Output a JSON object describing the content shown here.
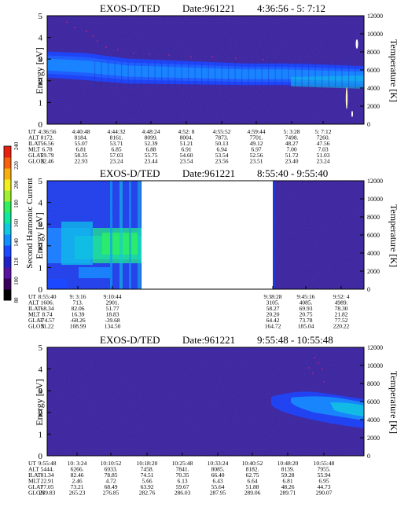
{
  "colorbar": {
    "label": "Second Harmonic Current",
    "ticks": [
      "80",
      "100",
      "120",
      "140",
      "160",
      "180",
      "200",
      "220",
      "240"
    ],
    "colors": [
      "#000000",
      "#3a0060",
      "#5a10a0",
      "#2020c8",
      "#1c48ff",
      "#1090ff",
      "#10c8e0",
      "#10e8a0",
      "#30f060",
      "#a0f030",
      "#f0f020",
      "#f8b010",
      "#f86010",
      "#e82010"
    ]
  },
  "chart_data": [
    {
      "type": "heatmap",
      "title": "EXOS-D/TED",
      "date_label": "Date:961221",
      "time_range": "4:36:56 - 5: 7:12",
      "ylabel": "Energy [eV]",
      "ylabel_right": "Temperature [K]",
      "yticks": [
        "0",
        "1",
        "2",
        "3",
        "4",
        "5"
      ],
      "yticks_right": [
        "0",
        "2000",
        "4000",
        "6000",
        "8000",
        "10000",
        "12000"
      ],
      "ylim": [
        0,
        5
      ],
      "ylim_right": [
        0,
        12000
      ],
      "row_labels": [
        "UT",
        "ALT",
        "ILAT",
        "MLT",
        "GLAT",
        "GLON"
      ],
      "columns": [
        [
          "4:36:56",
          "8172.",
          "56.56",
          "6.78",
          "59.79",
          "22.46"
        ],
        [
          "4:40:48",
          "8184.",
          "55.07",
          "6.81",
          "58.35",
          "22.93"
        ],
        [
          "4:44:32",
          "8161.",
          "53.71",
          "6.85",
          "57.03",
          "23.24"
        ],
        [
          "4:48:24",
          "8099.",
          "52.39",
          "6.88",
          "55.75",
          "23.44"
        ],
        [
          "4:52: 8",
          "8004.",
          "51.21",
          "6.91",
          "54.60",
          "23.54"
        ],
        [
          "4:55:52",
          "7873.",
          "50.13",
          "6.94",
          "53.54",
          "23.56"
        ],
        [
          "4:59:44",
          "7701.",
          "49.12",
          "6.97",
          "52.56",
          "23.51"
        ],
        [
          "5: 3:28",
          "7498.",
          "48.27",
          "7.00",
          "51.72",
          "23.40"
        ],
        [
          "5: 7:12",
          "7260.",
          "47.56",
          "7.03",
          "51.03",
          "23.24"
        ]
      ],
      "band": {
        "center": [
          2.75,
          2.65,
          2.45,
          2.4,
          2.35,
          2.3,
          2.3,
          2.25,
          2.2
        ],
        "width": [
          1.2,
          1.25,
          1.15,
          1.1,
          1.05,
          1.0,
          1.0,
          1.0,
          0.95
        ]
      }
    },
    {
      "type": "heatmap",
      "title": "EXOS-D/TED",
      "date_label": "Date:961221",
      "time_range": "8:55:40 - 9:55:40",
      "ylabel": "Energy [eV]",
      "ylabel_right": "Temperature [K]",
      "yticks": [
        "0",
        "1",
        "2",
        "3",
        "4",
        "5"
      ],
      "yticks_right": [
        "0",
        "2000",
        "4000",
        "6000",
        "8000",
        "10000",
        "12000"
      ],
      "ylim": [
        0,
        5
      ],
      "ylim_right": [
        0,
        12000
      ],
      "row_labels": [
        "UT",
        "ALT",
        "ILAT",
        "MLT",
        "GLAT",
        "GLON"
      ],
      "columns": [
        [
          "8:55:40",
          "1606.",
          "68.34",
          "8.74",
          "-74.57",
          "31.22"
        ],
        [
          "9: 3:16",
          "713.",
          "82.06",
          "16.39",
          "-68.26",
          "108.99"
        ],
        [
          "9:10:44",
          "2901.",
          "51.77",
          "18.83",
          "-39.68",
          "134.50"
        ],
        [
          "9:38:28",
          "3105.",
          "58.27",
          "20.20",
          "64.42",
          "164.72"
        ],
        [
          "9:45:16",
          "4085.",
          "69.93",
          "20.75",
          "73.78",
          "185.04"
        ],
        [
          "9:52: 4",
          "4989.",
          "78.30",
          "21.82",
          "77.52",
          "220.22"
        ]
      ]
    },
    {
      "type": "heatmap",
      "title": "EXOS-D/TED",
      "date_label": "Date:961221",
      "time_range": "9:55:48 - 10:55:48",
      "ylabel": "Energy [eV]",
      "ylabel_right": "Temperature [K]",
      "yticks": [
        "0",
        "1",
        "2",
        "3",
        "4",
        "5"
      ],
      "yticks_right": [
        "0",
        "2000",
        "4000",
        "6000",
        "8000",
        "10000",
        "12000"
      ],
      "ylim": [
        0,
        5
      ],
      "ylim_right": [
        0,
        12000
      ],
      "row_labels": [
        "UT",
        "ALT",
        "ILAT",
        "MLT",
        "GLAT",
        "GLON"
      ],
      "columns": [
        [
          "9:55:48",
          "5444.",
          "81.34",
          "22.91",
          "77.05",
          "239.83"
        ],
        [
          "10: 3:24",
          "6266.",
          "82.46",
          "2.46",
          "73.21",
          "265.23"
        ],
        [
          "10:10:52",
          "6933.",
          "78.85",
          "4.72",
          "68.49",
          "276.85"
        ],
        [
          "10:18:20",
          "7458.",
          "74.51",
          "5.66",
          "63.92",
          "282.76"
        ],
        [
          "10:25:48",
          "7841.",
          "70.35",
          "6.13",
          "59.67",
          "286.03"
        ],
        [
          "10:33:24",
          "8085.",
          "66.40",
          "6.43",
          "55.64",
          "287.95"
        ],
        [
          "10:40:52",
          "8182.",
          "62.75",
          "6.64",
          "51.88",
          "289.06"
        ],
        [
          "10:48:20",
          "8139.",
          "59.28",
          "6.81",
          "48.26",
          "289.71"
        ],
        [
          "10:55:48",
          "7955.",
          "55.94",
          "6.95",
          "44.73",
          "290.07"
        ]
      ]
    }
  ]
}
